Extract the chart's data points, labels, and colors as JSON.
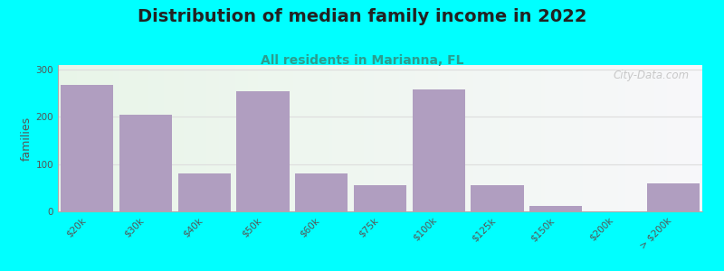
{
  "title": "Distribution of median family income in 2022",
  "subtitle": "All residents in Marianna, FL",
  "ylabel": "families",
  "categories": [
    "$20k",
    "$30k",
    "$40k",
    "$50k",
    "$60k",
    "$75k",
    "$100k",
    "$125k",
    "$150k",
    "$200k",
    "> $200k"
  ],
  "values": [
    268,
    205,
    80,
    255,
    80,
    55,
    258,
    55,
    12,
    0,
    60
  ],
  "bar_color": "#b09ec0",
  "bg_color": "#00ffff",
  "ylim": [
    0,
    310
  ],
  "yticks": [
    0,
    100,
    200,
    300
  ],
  "title_fontsize": 14,
  "subtitle_fontsize": 10,
  "ylabel_fontsize": 9,
  "tick_fontsize": 7.5,
  "watermark": "City-Data.com"
}
